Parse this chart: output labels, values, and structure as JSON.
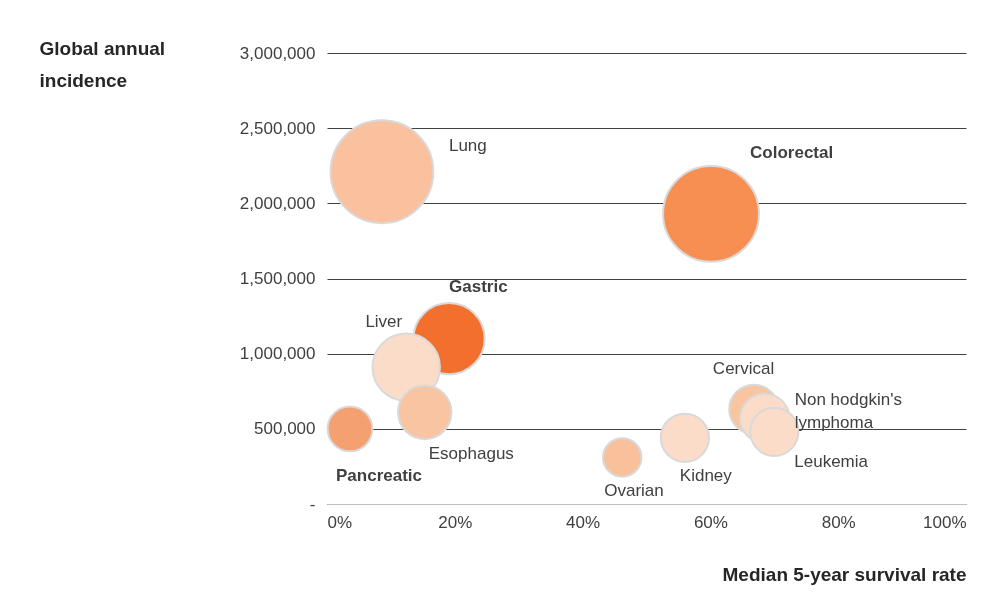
{
  "chart_data": {
    "type": "bubble",
    "xlabel": "Median 5-year survival rate",
    "ylabel": "Global annual incidence",
    "xlim": [
      0,
      100
    ],
    "xticks": [
      {
        "value": 0,
        "label": "0%"
      },
      {
        "value": 20,
        "label": "20%"
      },
      {
        "value": 40,
        "label": "40%"
      },
      {
        "value": 60,
        "label": "60%"
      },
      {
        "value": 80,
        "label": "80%"
      },
      {
        "value": 100,
        "label": "100%"
      }
    ],
    "ylim": [
      0,
      3000000
    ],
    "yticks": [
      {
        "value": 0,
        "label": "-"
      },
      {
        "value": 500000,
        "label": "500,000"
      },
      {
        "value": 1000000,
        "label": "1,000,000"
      },
      {
        "value": 1500000,
        "label": "1,500,000"
      },
      {
        "value": 2000000,
        "label": "2,000,000"
      },
      {
        "value": 2500000,
        "label": "2,500,000"
      },
      {
        "value": 3000000,
        "label": "3,000,000"
      }
    ],
    "grid": "y",
    "legend": false,
    "series": [
      {
        "name": "Lung",
        "color": "#f9c19e",
        "x": [
          8.6
        ],
        "values": [
          2210000
        ],
        "sizes": [
          1
        ]
      },
      {
        "name": "Colorectal",
        "color": "#f78e52",
        "x": [
          60.1
        ],
        "values": [
          1930000
        ],
        "sizes": [
          0.87
        ]
      },
      {
        "name": "Gastric",
        "color": "#f26f2e",
        "x": [
          19.1
        ],
        "values": [
          1100000
        ],
        "sizes": [
          0.48
        ]
      },
      {
        "name": "Liver",
        "color": "#fbdcc8",
        "x": [
          12.4
        ],
        "values": [
          910000
        ],
        "sizes": [
          0.43
        ]
      },
      {
        "name": "Pancreatic",
        "color": "#f5a070",
        "x": [
          3.6
        ],
        "values": [
          500000
        ],
        "sizes": [
          0.19
        ]
      },
      {
        "name": "Esophagus",
        "color": "#f9c4a2",
        "x": [
          15.3
        ],
        "values": [
          610000
        ],
        "sizes": [
          0.27
        ]
      },
      {
        "name": "Ovarian",
        "color": "#f9c09c",
        "x": [
          46.2
        ],
        "values": [
          310000
        ],
        "sizes": [
          0.14
        ]
      },
      {
        "name": "Kidney",
        "color": "#fbdcc8",
        "x": [
          56.0
        ],
        "values": [
          440000
        ],
        "sizes": [
          0.22
        ]
      },
      {
        "name": "Cervical",
        "color": "#f9c5a0",
        "x": [
          66.8
        ],
        "values": [
          630000
        ],
        "sizes": [
          0.23
        ]
      },
      {
        "name": "Non hodgkin's lymphoma",
        "color": "#fbdcc8",
        "x": [
          68.5
        ],
        "values": [
          570000
        ],
        "sizes": [
          0.23
        ]
      },
      {
        "name": "Leukemia",
        "color": "#fbdcc8",
        "x": [
          70.0
        ],
        "values": [
          480000
        ],
        "sizes": [
          0.22
        ]
      }
    ]
  }
}
